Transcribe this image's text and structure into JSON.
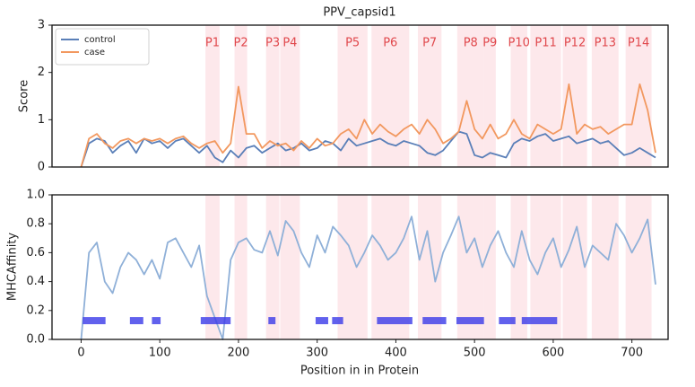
{
  "chart_data": [
    {
      "type": "line",
      "title": "PPV_capsid1",
      "ylabel": "Score",
      "x": [
        0,
        10,
        20,
        30,
        40,
        50,
        60,
        70,
        80,
        90,
        100,
        110,
        120,
        130,
        140,
        150,
        160,
        170,
        180,
        190,
        200,
        210,
        220,
        230,
        240,
        250,
        260,
        270,
        280,
        290,
        300,
        310,
        320,
        330,
        340,
        350,
        360,
        370,
        380,
        390,
        400,
        410,
        420,
        430,
        440,
        450,
        460,
        470,
        480,
        490,
        500,
        510,
        520,
        530,
        540,
        550,
        560,
        570,
        580,
        590,
        600,
        610,
        620,
        630,
        640,
        650,
        660,
        670,
        680,
        690,
        700,
        710,
        720,
        730
      ],
      "series": [
        {
          "name": "control",
          "color": "#5a7fb8",
          "values": [
            0,
            0.5,
            0.6,
            0.55,
            0.3,
            0.45,
            0.55,
            0.3,
            0.6,
            0.5,
            0.55,
            0.4,
            0.55,
            0.6,
            0.45,
            0.3,
            0.45,
            0.2,
            0.1,
            0.35,
            0.2,
            0.4,
            0.45,
            0.3,
            0.4,
            0.5,
            0.35,
            0.4,
            0.5,
            0.35,
            0.4,
            0.55,
            0.5,
            0.35,
            0.6,
            0.45,
            0.5,
            0.55,
            0.6,
            0.5,
            0.45,
            0.55,
            0.5,
            0.45,
            0.3,
            0.25,
            0.35,
            0.55,
            0.75,
            0.7,
            0.25,
            0.2,
            0.3,
            0.25,
            0.2,
            0.5,
            0.6,
            0.55,
            0.65,
            0.7,
            0.55,
            0.6,
            0.65,
            0.5,
            0.55,
            0.6,
            0.5,
            0.55,
            0.4,
            0.25,
            0.3,
            0.4,
            0.3,
            0.2
          ]
        },
        {
          "name": "case",
          "color": "#f2985f",
          "values": [
            0,
            0.6,
            0.7,
            0.5,
            0.4,
            0.55,
            0.6,
            0.5,
            0.6,
            0.55,
            0.6,
            0.5,
            0.6,
            0.65,
            0.5,
            0.4,
            0.5,
            0.55,
            0.3,
            0.5,
            1.7,
            0.7,
            0.7,
            0.4,
            0.55,
            0.45,
            0.5,
            0.35,
            0.55,
            0.4,
            0.6,
            0.45,
            0.5,
            0.7,
            0.8,
            0.6,
            1.0,
            0.7,
            0.9,
            0.75,
            0.65,
            0.8,
            0.9,
            0.7,
            1.0,
            0.8,
            0.5,
            0.6,
            0.75,
            1.4,
            0.8,
            0.6,
            0.9,
            0.6,
            0.7,
            1.0,
            0.7,
            0.6,
            0.9,
            0.8,
            0.7,
            0.8,
            1.75,
            0.7,
            0.9,
            0.8,
            0.85,
            0.7,
            0.8,
            0.9,
            0.9,
            1.75,
            1.2,
            0.3
          ]
        }
      ],
      "regions": [
        {
          "label": "P1",
          "range": [
            158,
            176
          ]
        },
        {
          "label": "P2",
          "range": [
            195,
            211
          ]
        },
        {
          "label": "P3",
          "range": [
            235,
            252
          ]
        },
        {
          "label": "P4",
          "range": [
            253,
            278
          ]
        },
        {
          "label": "P5",
          "range": [
            326,
            364
          ]
        },
        {
          "label": "P6",
          "range": [
            369,
            417
          ]
        },
        {
          "label": "P7",
          "range": [
            428,
            458
          ]
        },
        {
          "label": "P8",
          "range": [
            478,
            512
          ]
        },
        {
          "label": "P9",
          "range": [
            512,
            527
          ]
        },
        {
          "label": "P10",
          "range": [
            546,
            567
          ]
        },
        {
          "label": "P11",
          "range": [
            571,
            610
          ]
        },
        {
          "label": "P12",
          "range": [
            612,
            643
          ]
        },
        {
          "label": "P13",
          "range": [
            649,
            683
          ]
        },
        {
          "label": "P14",
          "range": [
            692,
            725
          ]
        }
      ],
      "region_color": "#fde2e6",
      "region_label_color": "#e0484c",
      "xlim": [
        -37,
        746
      ],
      "ylim": [
        0,
        3
      ],
      "yticks": [
        0,
        1,
        2,
        3
      ],
      "legend": "upper left"
    },
    {
      "type": "line",
      "ylabel": "MHCAffinity",
      "xlabel": "Position in in Protein",
      "x": [
        0,
        10,
        20,
        30,
        40,
        50,
        60,
        70,
        80,
        90,
        100,
        110,
        120,
        130,
        140,
        150,
        160,
        170,
        180,
        190,
        200,
        210,
        220,
        230,
        240,
        250,
        260,
        270,
        280,
        290,
        300,
        310,
        320,
        330,
        340,
        350,
        360,
        370,
        380,
        390,
        400,
        410,
        420,
        430,
        440,
        450,
        460,
        470,
        480,
        490,
        500,
        510,
        520,
        530,
        540,
        550,
        560,
        570,
        580,
        590,
        600,
        610,
        620,
        630,
        640,
        650,
        660,
        670,
        680,
        690,
        700,
        710,
        720,
        730
      ],
      "series": [
        {
          "color": "#8fb0d8",
          "values": [
            0,
            0.6,
            0.67,
            0.4,
            0.32,
            0.5,
            0.6,
            0.55,
            0.45,
            0.55,
            0.42,
            0.67,
            0.7,
            0.6,
            0.5,
            0.65,
            0.3,
            0.15,
            0,
            0.55,
            0.67,
            0.7,
            0.62,
            0.6,
            0.75,
            0.58,
            0.82,
            0.75,
            0.6,
            0.5,
            0.72,
            0.6,
            0.78,
            0.72,
            0.65,
            0.5,
            0.6,
            0.72,
            0.65,
            0.55,
            0.6,
            0.7,
            0.85,
            0.55,
            0.75,
            0.4,
            0.6,
            0.72,
            0.85,
            0.6,
            0.7,
            0.5,
            0.65,
            0.75,
            0.6,
            0.5,
            0.75,
            0.55,
            0.45,
            0.6,
            0.7,
            0.5,
            0.62,
            0.78,
            0.5,
            0.65,
            0.6,
            0.55,
            0.8,
            0.72,
            0.6,
            0.7,
            0.83,
            0.38
          ]
        }
      ],
      "binders": {
        "color": "#3a3ae8",
        "y": 0.13,
        "segments": [
          [
            2,
            31
          ],
          [
            62,
            79
          ],
          [
            90,
            101
          ],
          [
            152,
            190
          ],
          [
            238,
            247
          ],
          [
            298,
            314
          ],
          [
            319,
            333
          ],
          [
            376,
            421
          ],
          [
            434,
            464
          ],
          [
            477,
            512
          ],
          [
            531,
            552
          ],
          [
            560,
            605
          ]
        ]
      },
      "xlim": [
        -37,
        746
      ],
      "ylim": [
        0,
        1
      ],
      "xticks": [
        0,
        100,
        200,
        300,
        400,
        500,
        600,
        700
      ],
      "yticks": [
        {
          "value": 0,
          "label": "0.0"
        },
        0.2,
        0.4,
        0.6,
        0.8,
        {
          "value": 1,
          "label": "1.0"
        }
      ]
    }
  ]
}
